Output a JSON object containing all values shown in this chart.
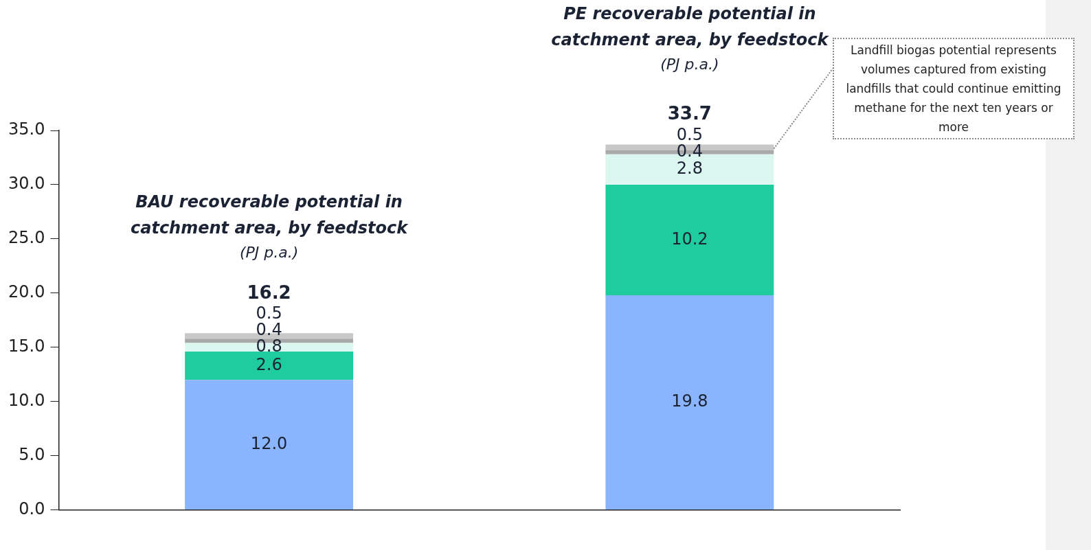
{
  "chart_data": {
    "type": "bar",
    "stacked": true,
    "categories": [
      null,
      null
    ],
    "series": [
      {
        "color": "#8ab4fd",
        "values": [
          12.0,
          19.8
        ],
        "value_labels": [
          "12.0",
          "19.8"
        ]
      },
      {
        "color": "#1fcc9e",
        "values": [
          2.6,
          10.2
        ],
        "value_labels": [
          "2.6",
          "10.2"
        ]
      },
      {
        "color": "#dcf7ef",
        "values": [
          0.8,
          2.8
        ],
        "value_labels": [
          "0.8",
          "2.8"
        ]
      },
      {
        "color": "#a9a9a9",
        "values": [
          0.4,
          0.4
        ],
        "value_labels": [
          "0.4",
          "0.4"
        ]
      },
      {
        "color": "#c8c8c8",
        "values": [
          0.5,
          0.5
        ],
        "value_labels": [
          "0.5",
          "0.5"
        ]
      }
    ],
    "totals": [
      "16.2",
      "33.7"
    ],
    "ylim": [
      0,
      35
    ],
    "yticks": [
      {
        "value": 0,
        "label": "0.0"
      },
      {
        "value": 5,
        "label": "5.0"
      },
      {
        "value": 10,
        "label": "10.0"
      },
      {
        "value": 15,
        "label": "15.0"
      },
      {
        "value": 20,
        "label": "20.0"
      },
      {
        "value": 25,
        "label": "25.0"
      },
      {
        "value": 30,
        "label": "30.0"
      },
      {
        "value": 35,
        "label": "35.0"
      }
    ],
    "grid": false,
    "legend": false,
    "annotations": [
      "BAU recoverable potential in catchment area, by feedstock",
      "(PJ p.a.)",
      "PE recoverable potential in catchment area, by feedstock",
      "(PJ p.a.)",
      "Landfill biogas potential represents volumes captured from existing landfills that could continue emitting methane for the next ten years or more"
    ]
  }
}
